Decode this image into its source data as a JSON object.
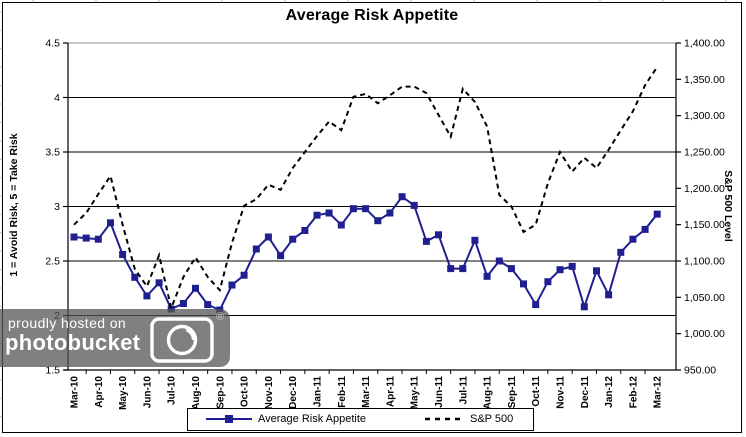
{
  "chart_data": {
    "type": "line",
    "title": "Average Risk Appetite",
    "x_categories": [
      "Mar-10",
      "Apr-10",
      "May-10",
      "Jun-10",
      "Jul-10",
      "Aug-10",
      "Sep-10",
      "Oct-10",
      "Nov-10",
      "Dec-10",
      "Jan-11",
      "Feb-11",
      "Mar-11",
      "Apr-11",
      "May-11",
      "Jun-11",
      "Jul-11",
      "Aug-11",
      "Sep-11",
      "Oct-11",
      "Nov-11",
      "Dec-11",
      "Jan-12",
      "Feb-12",
      "Mar-12"
    ],
    "points_frequency": "semi-monthly",
    "series": [
      {
        "name": "Average Risk Appetite",
        "axis": "left",
        "style": "solid-with-square-markers",
        "color": "#1F1F8F",
        "values": [
          2.72,
          2.71,
          2.7,
          2.85,
          2.56,
          2.35,
          2.18,
          2.3,
          2.06,
          2.11,
          2.25,
          2.1,
          2.05,
          2.28,
          2.37,
          2.61,
          2.72,
          2.55,
          2.7,
          2.78,
          2.92,
          2.94,
          2.83,
          2.98,
          2.98,
          2.87,
          2.94,
          3.09,
          3.01,
          2.68,
          2.74,
          2.43,
          2.43,
          2.69,
          2.36,
          2.5,
          2.43,
          2.29,
          2.1,
          2.31,
          2.42,
          2.45,
          2.08,
          2.41,
          2.19,
          2.58,
          2.7,
          2.79,
          2.93
        ]
      },
      {
        "name": "S&P 500",
        "axis": "right",
        "style": "dashed",
        "color": "#000000",
        "values": [
          1150,
          1166,
          1192,
          1217,
          1150,
          1089,
          1065,
          1108,
          1035,
          1078,
          1105,
          1078,
          1060,
          1125,
          1176,
          1185,
          1205,
          1198,
          1228,
          1250,
          1272,
          1292,
          1280,
          1326,
          1330,
          1317,
          1328,
          1340,
          1340,
          1331,
          1301,
          1271,
          1337,
          1319,
          1285,
          1191,
          1175,
          1140,
          1150,
          1207,
          1250,
          1223,
          1242,
          1228,
          1253,
          1280,
          1306,
          1342,
          1367
        ]
      }
    ],
    "left_axis": {
      "title": "1 = Avoid Risk, 5 = Take Risk",
      "min": 1.5,
      "max": 4.5,
      "step": 0.5,
      "tick_labels": [
        "4.5",
        "4",
        "3.5",
        "3",
        "2.5",
        "2",
        "1.5"
      ]
    },
    "right_axis": {
      "title": "S&P 500 Level",
      "min": 950,
      "max": 1400,
      "step": 50,
      "tick_labels": [
        "1,400.00",
        "1,350.00",
        "1,300.00",
        "1,250.00",
        "1,200.00",
        "1,150.00",
        "1,100.00",
        "1,050.00",
        "1,000.00",
        "950.00"
      ]
    },
    "grid": "horizontal",
    "legend_position": "bottom"
  },
  "watermark": {
    "line1": "proudly hosted on",
    "line2": "photobucket",
    "registered_mark": "®"
  }
}
